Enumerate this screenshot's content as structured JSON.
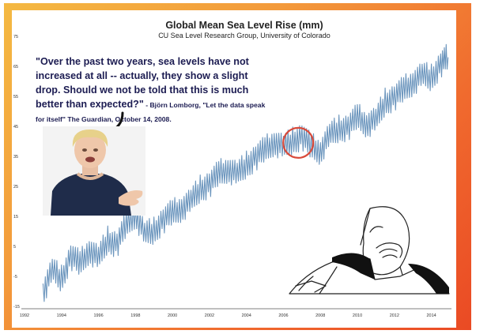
{
  "chart_data": {
    "type": "line",
    "title": "Global Mean Sea Level Rise (mm)",
    "subtitle": "CU Sea Level Research Group, University of Colorado",
    "xlabel": "",
    "ylabel": "",
    "xlim": [
      1992,
      2015
    ],
    "ylim": [
      -15,
      75
    ],
    "x_ticks": [
      "1992",
      "1994",
      "1996",
      "1998",
      "2000",
      "2002",
      "2004",
      "2006",
      "2008",
      "2010",
      "2012",
      "2014"
    ],
    "y_ticks": [
      "-15",
      "-5",
      "5",
      "15",
      "25",
      "35",
      "45",
      "55",
      "65",
      "75"
    ],
    "grid": false,
    "line_color": "#6b95bd",
    "series": [
      {
        "x": [
          1993.0,
          1993.5,
          1994.0,
          1994.5,
          1995.0,
          1995.5,
          1996.0,
          1996.5,
          1997.0,
          1997.5,
          1998.0,
          1998.5,
          1999.0,
          1999.5,
          2000.0,
          2000.5,
          2001.0,
          2001.5,
          2002.0,
          2002.5,
          2003.0,
          2003.5,
          2004.0,
          2004.5,
          2005.0,
          2005.5,
          2006.0,
          2006.5,
          2007.0,
          2007.5,
          2008.0,
          2008.5,
          2009.0,
          2009.5,
          2010.0,
          2010.5,
          2011.0,
          2011.5,
          2012.0,
          2012.5,
          2013.0,
          2013.5,
          2014.0,
          2014.5,
          2014.9
        ],
        "values": [
          -10,
          -3,
          -6,
          2,
          -1,
          4,
          1,
          7,
          6,
          12,
          16,
          9,
          10,
          14,
          16,
          18,
          20,
          24,
          26,
          29,
          31,
          29,
          32,
          35,
          37,
          40,
          38,
          40,
          42,
          38,
          37,
          42,
          44,
          45,
          48,
          46,
          47,
          53,
          55,
          57,
          60,
          62,
          61,
          66,
          68
        ]
      }
    ],
    "annotations": [
      {
        "type": "circle",
        "label": "",
        "x": 2006.8,
        "y": 39.5,
        "color": "#d94a3a"
      }
    ]
  },
  "quote": {
    "main": "\"Over the past two years, sea levels have not increased at all -- actually, they show a slight drop. Should we not be told that this is much better than expected?\"",
    "attribution": " - Björn Lomborg, \"Let the data speak for itself\" The Guardian, October 14, 2008."
  },
  "illustrations": {
    "speaker_photo": "person-speaking-photo",
    "facepalm": "facepalm-drawing"
  }
}
